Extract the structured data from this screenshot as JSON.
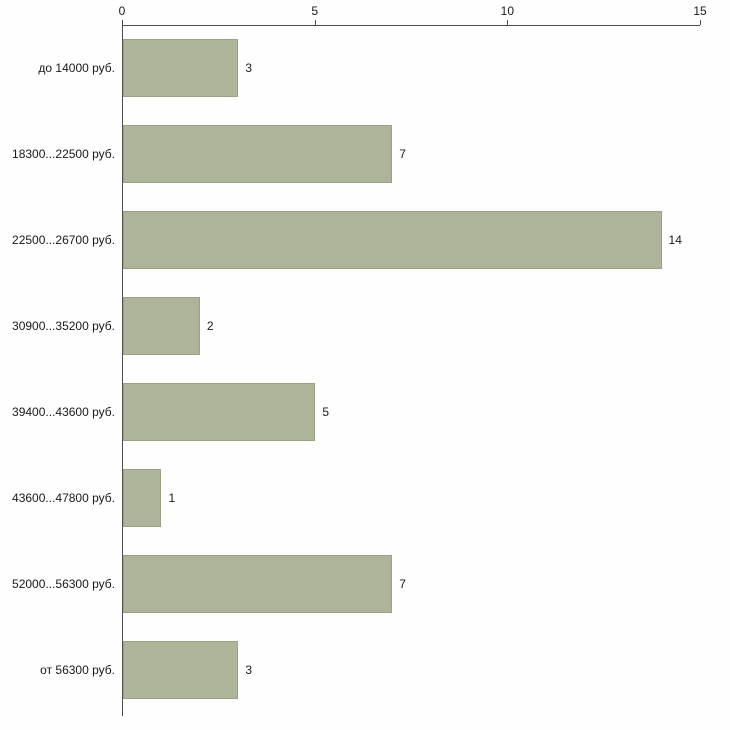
{
  "chart_data": {
    "type": "bar",
    "orientation": "horizontal",
    "title": "",
    "xlabel": "",
    "ylabel": "",
    "categories": [
      "до 14000 руб.",
      "18300...22500 руб.",
      "22500...26700 руб.",
      "30900...35200 руб.",
      "39400...43600 руб.",
      "43600...47800 руб.",
      "52000...56300 руб.",
      "от 56300 руб."
    ],
    "values": [
      3,
      7,
      14,
      2,
      5,
      1,
      7,
      3
    ],
    "xlim": [
      0,
      15
    ],
    "x_ticks": [
      0,
      5,
      10,
      15
    ],
    "axis_position": "top",
    "grid": false,
    "legend": false,
    "value_labels": true,
    "bar_color": "#aeb49a",
    "bar_border_color": "#9aa184",
    "axis_color": "#4d4d4d",
    "text_color": "#1a1a1a",
    "background_color": "#fefefe"
  }
}
